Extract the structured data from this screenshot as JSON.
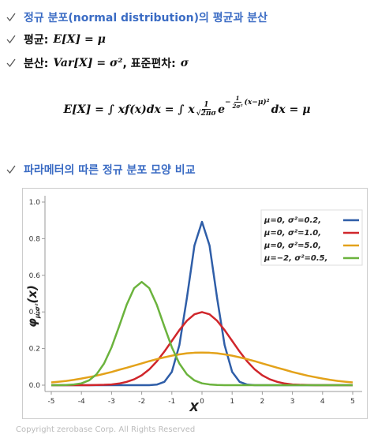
{
  "header": {
    "title": "정규 분포(normal distribution)의 평균과 분산",
    "mean_label": "평균:",
    "mean_math": "E[X] = μ",
    "var_label": "분산:",
    "var_math": "Var[X] = σ²",
    "sd_label": ", 표준편차:",
    "sd_math": "σ"
  },
  "formula": {
    "left": "E[X] = ∫ xf(x)dx = ∫ x",
    "frac_num": "1",
    "frac_den": "√2πσ",
    "base": "e",
    "exp_sign": "−",
    "exp_num": "1",
    "exp_den": "2σ²",
    "exp_rest": "(x−μ)²",
    "right": "dx = μ"
  },
  "section": {
    "title": "파라메터의 따른 정규 분포 모양 비교"
  },
  "chart_data": {
    "type": "line",
    "xlabel": "X",
    "ylabel": "φ",
    "ylabel_sub": "μ,σ²",
    "ylabel_arg": "(x)",
    "x": [
      -5,
      -4.75,
      -4.5,
      -4.25,
      -4,
      -3.75,
      -3.5,
      -3.25,
      -3,
      -2.75,
      -2.5,
      -2.25,
      -2,
      -1.75,
      -1.5,
      -1.25,
      -1,
      -0.75,
      -0.5,
      -0.25,
      0,
      0.25,
      0.5,
      0.75,
      1,
      1.25,
      1.5,
      1.75,
      2,
      2.25,
      2.5,
      2.75,
      3,
      3.25,
      3.5,
      3.75,
      4,
      4.25,
      4.5,
      4.75,
      5
    ],
    "series": [
      {
        "name": "μ=0, σ²=0.2,",
        "color": "#2f5ea8",
        "values": [
          0,
          0,
          0,
          0,
          0,
          0,
          0,
          0,
          0,
          0,
          0,
          0,
          0,
          0,
          0.003,
          0.018,
          0.073,
          0.219,
          0.477,
          0.763,
          0.892,
          0.763,
          0.477,
          0.219,
          0.073,
          0.018,
          0.003,
          0,
          0,
          0,
          0,
          0,
          0,
          0,
          0,
          0,
          0,
          0,
          0,
          0,
          0
        ]
      },
      {
        "name": "μ=0, σ²=1.0,",
        "color": "#d0262b",
        "values": [
          0,
          0,
          0,
          0,
          0,
          0,
          0.001,
          0.002,
          0.004,
          0.009,
          0.018,
          0.032,
          0.054,
          0.086,
          0.13,
          0.183,
          0.242,
          0.301,
          0.352,
          0.387,
          0.399,
          0.387,
          0.352,
          0.301,
          0.242,
          0.183,
          0.13,
          0.086,
          0.054,
          0.032,
          0.018,
          0.009,
          0.004,
          0.002,
          0.001,
          0,
          0,
          0,
          0,
          0,
          0
        ]
      },
      {
        "name": "μ=0, σ²=5.0,",
        "color": "#e3a21a",
        "values": [
          0.015,
          0.019,
          0.023,
          0.029,
          0.036,
          0.044,
          0.052,
          0.062,
          0.072,
          0.084,
          0.095,
          0.107,
          0.119,
          0.131,
          0.142,
          0.152,
          0.161,
          0.168,
          0.174,
          0.177,
          0.178,
          0.177,
          0.174,
          0.168,
          0.161,
          0.152,
          0.142,
          0.131,
          0.119,
          0.107,
          0.095,
          0.084,
          0.072,
          0.062,
          0.052,
          0.044,
          0.036,
          0.029,
          0.023,
          0.019,
          0.015
        ]
      },
      {
        "name": "μ=−2, σ²=0.5,",
        "color": "#6bb33d",
        "values": [
          0,
          0,
          0.001,
          0.004,
          0.01,
          0.026,
          0.059,
          0.118,
          0.207,
          0.321,
          0.439,
          0.53,
          0.564,
          0.53,
          0.439,
          0.321,
          0.207,
          0.118,
          0.059,
          0.026,
          0.01,
          0.004,
          0.001,
          0,
          0,
          0,
          0,
          0,
          0,
          0,
          0,
          0,
          0,
          0,
          0,
          0,
          0,
          0,
          0,
          0,
          0
        ]
      }
    ],
    "xlim": [
      -5,
      5
    ],
    "ylim": [
      0,
      1
    ],
    "xticks": [
      -5,
      -4,
      -3,
      -2,
      -1,
      0,
      1,
      2,
      3,
      4,
      5
    ],
    "yticks": [
      {
        "value": 0,
        "label": "0.0"
      },
      0.2,
      0.4,
      0.6,
      0.8,
      {
        "value": 1,
        "label": "1.0"
      }
    ],
    "grid": false,
    "legend": "upper right"
  },
  "footer": {
    "text": "Copyright zerobase Corp. All Rights Reserved"
  }
}
